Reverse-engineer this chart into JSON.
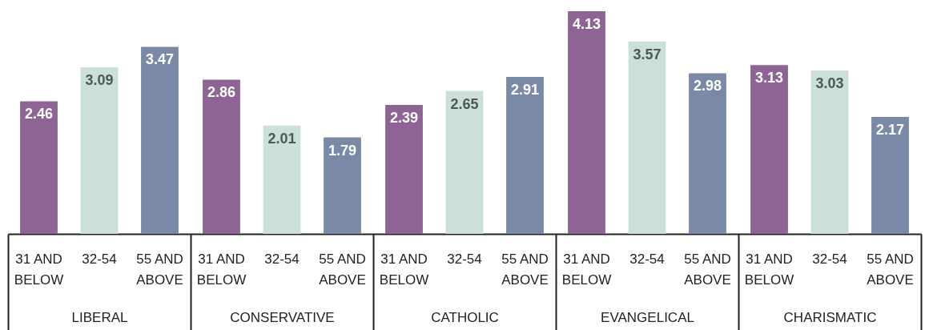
{
  "chart_data": {
    "type": "bar",
    "categories": [
      "LIBERAL",
      "CONSERVATIVE",
      "CATHOLIC",
      "EVANGELICAL",
      "CHARISMATIC"
    ],
    "series": [
      {
        "name": "31 AND BELOW",
        "color": "#8e6495",
        "values": [
          2.46,
          2.86,
          2.39,
          4.13,
          3.13
        ]
      },
      {
        "name": "32-54",
        "color": "#cddfd9",
        "values": [
          3.09,
          2.01,
          2.65,
          3.57,
          3.03
        ]
      },
      {
        "name": "55 AND ABOVE",
        "color": "#7a89a6",
        "values": [
          3.47,
          1.79,
          2.91,
          2.98,
          2.17
        ]
      }
    ],
    "data_labels": true,
    "grid": false
  }
}
